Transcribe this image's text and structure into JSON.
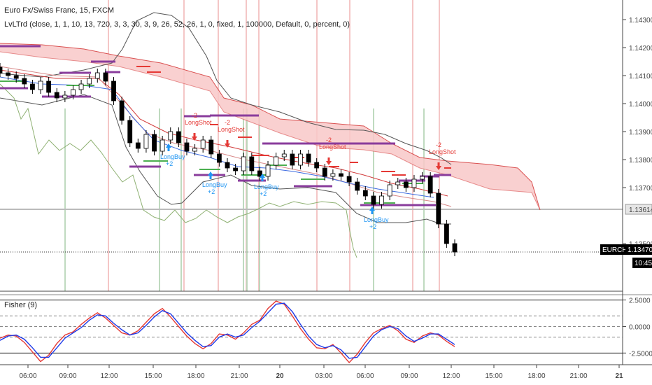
{
  "header": {
    "title": "Euro Fx/Swiss Franc, 15, FXCM",
    "indicator": "LvLTrd (close, 1, 1, 10, 13, 720, 3, 3, 30, 3, 9, 26, 52, 26, 1, 0, fixed, 1, 100000, Default, 0, percent, 0)"
  },
  "lower_pane": {
    "title": "Fisher (9)"
  },
  "price_badges": {
    "symbol": "EURCHF",
    "last_price": "1.13470",
    "countdown": "10:45",
    "level_price": "1.13614"
  },
  "colors": {
    "up_candle": "#ffffff",
    "down_candle": "#000000",
    "cloud": "#f8c8c8",
    "cloud_line": "#d95050",
    "bollinger": "#555555",
    "lagging_span": "#8fb173",
    "purple_level": "#8a3c9c",
    "green_level": "#4caf50",
    "fisher_red": "#e53935",
    "fisher_blue": "#1e3ae8",
    "long_buy": "#2196f3",
    "long_shot": "#e53935",
    "vline_red": "#f2b8b8",
    "vline_green": "#b9d6b9"
  },
  "chart_data": [
    {
      "type": "candlestick",
      "title": "Euro Fx/Swiss Franc, 15, FXCM",
      "ylim": [
        1.1333,
        1.1437
      ],
      "y_ticks": [
        "1.14300",
        "1.14200",
        "1.14100",
        "1.14000",
        "1.13900",
        "1.13800",
        "1.13700",
        "1.13500"
      ],
      "x_ticks": [
        "06:00",
        "09:00",
        "12:00",
        "15:00",
        "18:00",
        "21:00",
        "20",
        "03:00",
        "06:00",
        "09:00",
        "12:00",
        "15:00",
        "18:00",
        "21:00",
        "21"
      ],
      "close_path": [
        1.1411,
        1.141,
        1.1409,
        1.1407,
        1.1405,
        1.1408,
        1.1404,
        1.1402,
        1.1403,
        1.1405,
        1.1407,
        1.1409,
        1.1411,
        1.1408,
        1.1401,
        1.1394,
        1.1386,
        1.1384,
        1.1389,
        1.1383,
        1.1387,
        1.139,
        1.1386,
        1.1383,
        1.1384,
        1.1387,
        1.1382,
        1.1379,
        1.1377,
        1.1376,
        1.1381,
        1.1376,
        1.1374,
        1.1378,
        1.1381,
        1.1382,
        1.1378,
        1.1382,
        1.1379,
        1.1377,
        1.1374,
        1.1375,
        1.1374,
        1.1372,
        1.1369,
        1.1367,
        1.1364,
        1.1367,
        1.1371,
        1.1372,
        1.137,
        1.1373,
        1.1374,
        1.1368,
        1.1357,
        1.135,
        1.1347
      ],
      "signals": [
        {
          "label": "LongBuy",
          "value": "+2",
          "kind": "buy"
        },
        {
          "label": "LongBuy",
          "value": "+2",
          "kind": "buy"
        },
        {
          "label": "LongBuy",
          "value": "+2",
          "kind": "buy"
        },
        {
          "label": "LongBuy",
          "value": "+2",
          "kind": "buy"
        },
        {
          "label": "LongShot",
          "value": "-2",
          "kind": "shot"
        },
        {
          "label": "LongShot",
          "value": "-2",
          "kind": "shot"
        },
        {
          "label": "LongShot",
          "value": "-2",
          "kind": "shot"
        },
        {
          "label": "LongShot",
          "value": "-2",
          "kind": "shot"
        }
      ]
    },
    {
      "type": "line",
      "title": "Fisher (9)",
      "ylim": [
        -3.6,
        3.0
      ],
      "y_ticks": [
        "2.5000",
        "0.0000",
        "-2.5000"
      ],
      "levels": [
        2.5,
        1.0,
        0.0,
        -1.0,
        -2.5
      ],
      "series": [
        {
          "name": "",
          "values": [
            -1.1,
            -0.8,
            -0.9,
            -1.5,
            -2.4,
            -3.3,
            -2.7,
            -1.6,
            -0.8,
            -0.5,
            0.2,
            0.8,
            1.3,
            0.8,
            0.1,
            -0.6,
            -0.8,
            -0.4,
            0.4,
            1.2,
            1.7,
            0.9,
            0.0,
            -0.9,
            -1.6,
            -2.1,
            -1.6,
            -0.7,
            -0.8,
            -1.2,
            -0.6,
            0.2,
            0.6,
            1.7,
            2.4,
            2.1,
            1.0,
            -0.2,
            -1.2,
            -2.0,
            -2.1,
            -1.7,
            -2.5,
            -3.4,
            -2.6,
            -1.5,
            -0.6,
            -0.2,
            0.1,
            -0.4,
            -1.2,
            -1.5,
            -0.9,
            -0.6,
            -0.8,
            -1.4,
            -1.9
          ]
        },
        {
          "name": "",
          "values": [
            -1.3,
            -0.9,
            -0.8,
            -1.2,
            -2.0,
            -2.9,
            -2.9,
            -2.0,
            -1.1,
            -0.6,
            -0.1,
            0.6,
            1.1,
            1.0,
            0.3,
            -0.3,
            -0.8,
            -0.6,
            0.1,
            0.9,
            1.5,
            1.2,
            0.3,
            -0.6,
            -1.3,
            -1.9,
            -1.8,
            -1.0,
            -0.7,
            -1.0,
            -0.8,
            -0.1,
            0.5,
            1.3,
            2.1,
            2.2,
            1.4,
            0.2,
            -0.9,
            -1.7,
            -2.0,
            -1.8,
            -2.2,
            -3.0,
            -2.9,
            -1.9,
            -0.9,
            -0.3,
            0.0,
            -0.2,
            -0.9,
            -1.4,
            -1.1,
            -0.7,
            -0.7,
            -1.2,
            -1.7
          ]
        }
      ]
    }
  ]
}
